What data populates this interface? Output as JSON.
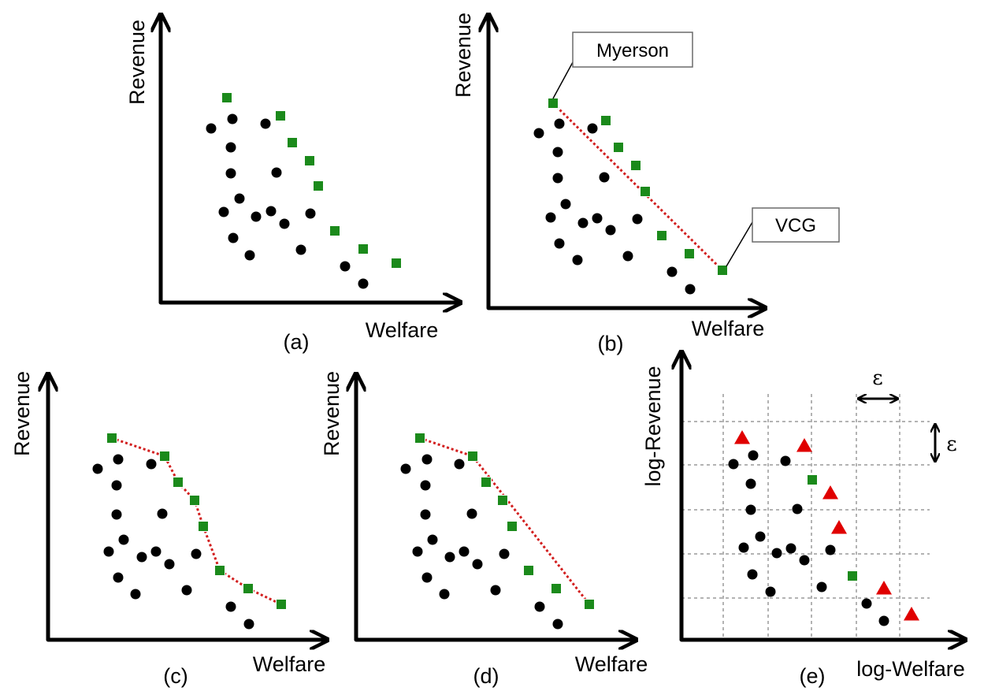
{
  "panels": [
    {
      "id": "a",
      "label": "(a)",
      "xlabel": "Welfare",
      "ylabel": "Revenue",
      "circles": [
        [
          268,
          163
        ],
        [
          295,
          151
        ],
        [
          337,
          157
        ],
        [
          293,
          187
        ],
        [
          293,
          220
        ],
        [
          351,
          219
        ],
        [
          304,
          252
        ],
        [
          284,
          269
        ],
        [
          325,
          275
        ],
        [
          344,
          268
        ],
        [
          361,
          284
        ],
        [
          394,
          271
        ],
        [
          296,
          302
        ],
        [
          317,
          324
        ],
        [
          382,
          317
        ],
        [
          438,
          338
        ],
        [
          461,
          360
        ]
      ],
      "squares": [
        [
          288,
          124
        ],
        [
          356,
          147
        ],
        [
          371,
          181
        ],
        [
          393,
          204
        ],
        [
          404,
          236
        ],
        [
          425,
          293
        ],
        [
          461,
          316
        ],
        [
          503,
          334
        ]
      ],
      "frontier": []
    },
    {
      "id": "b",
      "label": "(b)",
      "xlabel": "Welfare",
      "ylabel": "Revenue",
      "circles": [
        [
          684,
          169
        ],
        [
          710,
          157
        ],
        [
          752,
          163
        ],
        [
          708,
          193
        ],
        [
          708,
          226
        ],
        [
          767,
          225
        ],
        [
          718,
          259
        ],
        [
          699,
          276
        ],
        [
          740,
          283
        ],
        [
          758,
          277
        ],
        [
          775,
          292
        ],
        [
          809,
          278
        ],
        [
          710,
          309
        ],
        [
          733,
          330
        ],
        [
          797,
          325
        ],
        [
          853,
          345
        ],
        [
          876,
          367
        ]
      ],
      "squares": [
        [
          702,
          131
        ],
        [
          769,
          153
        ],
        [
          785,
          187
        ],
        [
          807,
          210
        ],
        [
          819,
          243
        ],
        [
          840,
          299
        ],
        [
          875,
          322
        ],
        [
          917,
          343
        ]
      ],
      "frontier": [
        [
          702,
          131
        ],
        [
          917,
          343
        ]
      ]
    },
    {
      "id": "c",
      "label": "(c)",
      "xlabel": "Welfare",
      "ylabel": "Revenue",
      "circles": [
        [
          124,
          595
        ],
        [
          150,
          583
        ],
        [
          192,
          589
        ],
        [
          148,
          616
        ],
        [
          148,
          653
        ],
        [
          206,
          652
        ],
        [
          157,
          685
        ],
        [
          138,
          700
        ],
        [
          180,
          707
        ],
        [
          198,
          700
        ],
        [
          215,
          716
        ],
        [
          249,
          703
        ],
        [
          150,
          733
        ],
        [
          172,
          754
        ],
        [
          237,
          749
        ],
        [
          293,
          770
        ],
        [
          316,
          792
        ]
      ],
      "squares": [
        [
          142,
          556
        ],
        [
          209,
          579
        ],
        [
          226,
          612
        ],
        [
          247,
          635
        ],
        [
          258,
          668
        ],
        [
          279,
          724
        ],
        [
          315,
          747
        ],
        [
          357,
          767
        ]
      ],
      "frontier": [
        [
          142,
          556
        ],
        [
          209,
          579
        ],
        [
          226,
          612
        ],
        [
          247,
          635
        ],
        [
          258,
          668
        ],
        [
          279,
          724
        ],
        [
          315,
          747
        ],
        [
          357,
          767
        ]
      ]
    },
    {
      "id": "d",
      "label": "(d)",
      "xlabel": "Welfare",
      "ylabel": "Revenue",
      "circles": [
        [
          515,
          595
        ],
        [
          542,
          583
        ],
        [
          583,
          589
        ],
        [
          540,
          616
        ],
        [
          540,
          653
        ],
        [
          599,
          652
        ],
        [
          549,
          685
        ],
        [
          530,
          700
        ],
        [
          571,
          707
        ],
        [
          589,
          700
        ],
        [
          606,
          716
        ],
        [
          640,
          703
        ],
        [
          542,
          733
        ],
        [
          564,
          754
        ],
        [
          629,
          749
        ],
        [
          685,
          770
        ],
        [
          708,
          792
        ]
      ],
      "squares": [
        [
          533,
          556
        ],
        [
          600,
          579
        ],
        [
          617,
          612
        ],
        [
          638,
          635
        ],
        [
          650,
          668
        ],
        [
          671,
          724
        ],
        [
          706,
          747
        ],
        [
          748,
          767
        ]
      ],
      "frontier": [
        [
          533,
          556
        ],
        [
          600,
          579
        ],
        [
          748,
          767
        ]
      ]
    }
  ],
  "panel_b_callouts": {
    "myerson": "Myerson",
    "vcg": "VCG"
  },
  "panel_e": {
    "label": "(e)",
    "xlabel": "log-Welfare",
    "ylabel": "log-Revenue",
    "epsilon_h": "ε",
    "epsilon_v": "ε",
    "circles": [
      [
        931,
        589
      ],
      [
        956,
        578
      ],
      [
        997,
        585
      ],
      [
        953,
        614
      ],
      [
        953,
        647
      ],
      [
        1012,
        646
      ],
      [
        965,
        681
      ],
      [
        944,
        695
      ],
      [
        986,
        702
      ],
      [
        1004,
        696
      ],
      [
        1021,
        711
      ],
      [
        1054,
        698
      ],
      [
        955,
        729
      ],
      [
        978,
        751
      ],
      [
        1043,
        745
      ],
      [
        1100,
        766
      ],
      [
        1122,
        788
      ]
    ],
    "squares": [
      [
        1031,
        609
      ],
      [
        1082,
        731
      ]
    ],
    "triangles": [
      [
        942,
        556
      ],
      [
        1021,
        566
      ],
      [
        1054,
        626
      ],
      [
        1065,
        670
      ],
      [
        1122,
        747
      ],
      [
        1157,
        780
      ]
    ]
  },
  "colors": {
    "point": "#000000",
    "pareto": "#1b8a1b",
    "frontier": "#d21f1f",
    "triangle": "#e00000",
    "grid": "#9a9a9a"
  }
}
